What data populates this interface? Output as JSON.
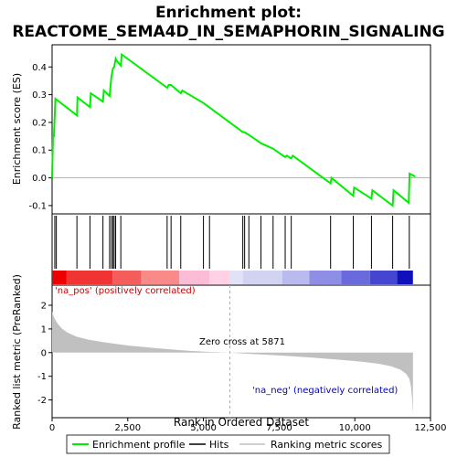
{
  "chart_data": {
    "type": "line",
    "title_line1": "Enrichment plot:",
    "title_line2": "REACTOME_SEMA4D_IN_SEMAPHORIN_SIGNALING",
    "top_panel": {
      "ylabel": "Enrichment score (ES)",
      "ylim": [
        -0.13,
        0.48
      ],
      "yticks": [
        -0.1,
        0.0,
        0.1,
        0.2,
        0.3,
        0.4
      ],
      "ytick_labels": [
        "-0.1",
        "0.0",
        "0.1",
        "0.2",
        "0.3",
        "0.4"
      ],
      "series": [
        {
          "name": "Enrichment profile",
          "color": "#00ee00",
          "x": [
            0,
            30,
            60,
            110,
            820,
            840,
            1250,
            1280,
            1680,
            1710,
            1900,
            1930,
            1960,
            2010,
            2050,
            2100,
            2150,
            2270,
            2300,
            3800,
            3850,
            3930,
            4250,
            4300,
            5000,
            5250,
            6300,
            6350,
            6500,
            6900,
            7300,
            7700,
            7750,
            7900,
            7950,
            9200,
            9230,
            9950,
            9980,
            10550,
            10580,
            11250,
            11280,
            11780,
            11810,
            12000
          ],
          "y": [
            0.0,
            0.15,
            0.15,
            0.285,
            0.225,
            0.29,
            0.255,
            0.305,
            0.275,
            0.315,
            0.295,
            0.33,
            0.365,
            0.395,
            0.4,
            0.43,
            0.42,
            0.405,
            0.445,
            0.325,
            0.335,
            0.335,
            0.305,
            0.315,
            0.27,
            0.25,
            0.165,
            0.165,
            0.155,
            0.125,
            0.105,
            0.075,
            0.08,
            0.07,
            0.08,
            -0.02,
            0.0,
            -0.065,
            -0.035,
            -0.075,
            -0.045,
            -0.1,
            -0.045,
            -0.09,
            0.015,
            0.005
          ]
        }
      ]
    },
    "hits_panel": {
      "hit_positions": [
        90,
        140,
        820,
        1250,
        1680,
        1900,
        1960,
        2010,
        2050,
        2100,
        2270,
        3800,
        3930,
        4250,
        5000,
        5200,
        6300,
        6360,
        6500,
        6900,
        7300,
        7700,
        7900,
        9200,
        9950,
        10550,
        11250,
        11800
      ],
      "bar_segments": [
        {
          "x0": 0,
          "x1": 480,
          "color": "#ee0000"
        },
        {
          "x0": 480,
          "x1": 2000,
          "color": "#f03434"
        },
        {
          "x0": 2000,
          "x1": 2950,
          "color": "#f55d5d"
        },
        {
          "x0": 2950,
          "x1": 4200,
          "color": "#f88a8a"
        },
        {
          "x0": 4200,
          "x1": 5200,
          "color": "#fbbcd6"
        },
        {
          "x0": 5200,
          "x1": 5871,
          "color": "#fcd2e4"
        },
        {
          "x0": 5871,
          "x1": 6300,
          "color": "#e2e2f6"
        },
        {
          "x0": 6300,
          "x1": 7600,
          "color": "#d2d2f2"
        },
        {
          "x0": 7600,
          "x1": 8500,
          "color": "#babaee"
        },
        {
          "x0": 8500,
          "x1": 9550,
          "color": "#8e8ee6"
        },
        {
          "x0": 9550,
          "x1": 10500,
          "color": "#6a6adc"
        },
        {
          "x0": 10500,
          "x1": 11400,
          "color": "#4545d2"
        },
        {
          "x0": 11400,
          "x1": 11920,
          "color": "#1111bb"
        }
      ]
    },
    "metric_panel": {
      "ylabel": "Ranked list metric (PreRanked)",
      "ylim": [
        -2.75,
        2.85
      ],
      "yticks": [
        -2,
        -1,
        0,
        1,
        2
      ],
      "ytick_labels": [
        "-2",
        "-1",
        "0",
        "1",
        "2"
      ],
      "metric_curve": {
        "x": [
          0,
          20,
          60,
          120,
          200,
          320,
          500,
          800,
          1200,
          1800,
          2500,
          3500,
          4500,
          5200,
          5871,
          6500,
          7500,
          8500,
          9500,
          10200,
          10800,
          11200,
          11500,
          11700,
          11800,
          11850,
          11890,
          11920
        ],
        "y": [
          1.75,
          1.65,
          1.5,
          1.35,
          1.2,
          1.02,
          0.85,
          0.68,
          0.55,
          0.42,
          0.3,
          0.18,
          0.08,
          0.03,
          0.0,
          -0.05,
          -0.12,
          -0.2,
          -0.3,
          -0.38,
          -0.47,
          -0.58,
          -0.72,
          -0.9,
          -1.1,
          -1.4,
          -1.9,
          -2.6
        ]
      },
      "zero_cross_index": 5871,
      "annotation_zero": "Zero cross at 5871",
      "annotation_pos": "'na_pos' (positively correlated)",
      "annotation_neg": "'na_neg' (negatively correlated)"
    },
    "xaxis": {
      "label": "Rank in Ordered Dataset",
      "xlim": [
        0,
        12500
      ],
      "xticks": [
        0,
        2500,
        5000,
        7500,
        10000,
        12500
      ],
      "xtick_labels": [
        "0",
        "2,500",
        "5,000",
        "7,500",
        "10,000",
        "12,500"
      ]
    },
    "legend": {
      "placement": "bottom",
      "items": [
        {
          "label": "Enrichment profile",
          "color": "#00ee00",
          "kind": "line"
        },
        {
          "label": "Hits",
          "color": "#000000",
          "kind": "line"
        },
        {
          "label": "Ranking metric scores",
          "color": "#c0c0c0",
          "kind": "line"
        }
      ]
    }
  }
}
